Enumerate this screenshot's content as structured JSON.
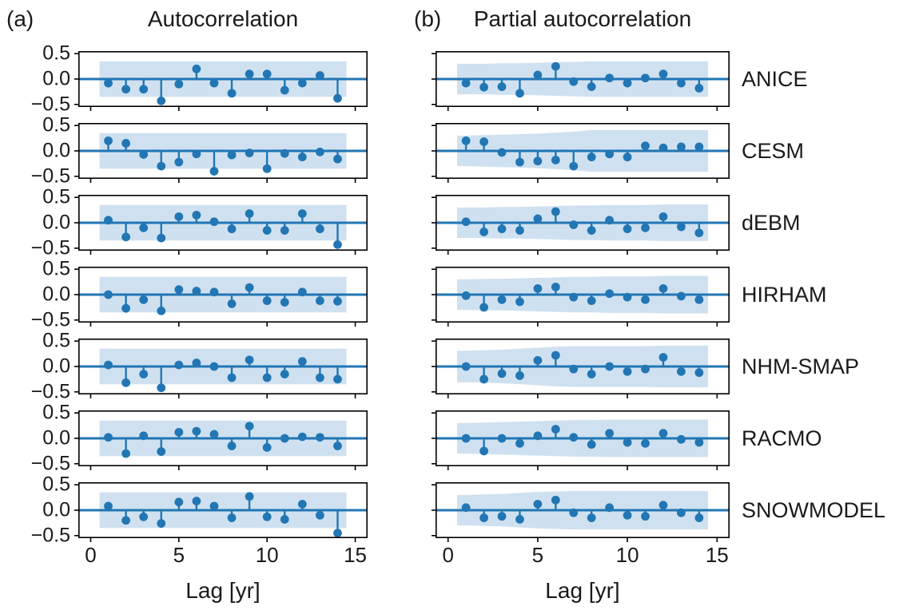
{
  "chart_data": {
    "type": "stem",
    "columns": [
      {
        "tag": "(a)",
        "title": "Autocorrelation",
        "key": "acf"
      },
      {
        "tag": "(b)",
        "title": "Partial autocorrelation",
        "key": "pacf"
      }
    ],
    "xlabel": "Lag [yr]",
    "x_ticks": [
      0,
      5,
      10,
      15
    ],
    "x_tick_labels": [
      "0",
      "5",
      "10",
      "15"
    ],
    "y_ticks": [
      0.5,
      0.0,
      -0.5
    ],
    "y_tick_labels": [
      "0.5",
      "0.0",
      "−0.5"
    ],
    "xlim": [
      -0.7,
      15.7
    ],
    "ylim": [
      -0.55,
      0.55
    ],
    "lags": [
      1,
      2,
      3,
      4,
      5,
      6,
      7,
      8,
      9,
      10,
      11,
      12,
      13,
      14
    ],
    "band_x_range": [
      0.5,
      14.5
    ],
    "acf_band_halfwidth": 0.35,
    "grid": false,
    "legend": "none",
    "colors": {
      "stem": "#2276b4",
      "band": "#cfe1f0",
      "axis": "#000000"
    },
    "models": [
      {
        "name": "ANICE",
        "acf": [
          -0.08,
          -0.2,
          -0.2,
          -0.43,
          -0.1,
          0.2,
          -0.08,
          -0.28,
          0.1,
          0.1,
          -0.22,
          -0.08,
          0.07,
          -0.38
        ],
        "pacf": [
          -0.08,
          -0.16,
          -0.15,
          -0.28,
          0.08,
          0.25,
          -0.05,
          -0.15,
          0.02,
          -0.08,
          0.02,
          0.1,
          -0.08,
          -0.18
        ],
        "pacf_band_halfwidths": [
          0.3,
          0.3,
          0.31,
          0.31,
          0.32,
          0.33,
          0.34,
          0.35,
          0.35,
          0.35,
          0.35,
          0.35,
          0.35,
          0.35
        ]
      },
      {
        "name": "CESM",
        "acf": [
          0.2,
          0.15,
          -0.07,
          -0.3,
          -0.22,
          -0.06,
          -0.4,
          -0.08,
          -0.04,
          -0.35,
          -0.05,
          -0.12,
          -0.02,
          -0.16
        ],
        "pacf": [
          0.2,
          0.18,
          -0.03,
          -0.22,
          -0.2,
          -0.18,
          -0.3,
          -0.12,
          -0.06,
          -0.12,
          0.1,
          0.06,
          0.08,
          0.08
        ],
        "pacf_band_halfwidths": [
          0.3,
          0.31,
          0.32,
          0.33,
          0.34,
          0.36,
          0.38,
          0.41,
          0.41,
          0.41,
          0.41,
          0.41,
          0.41,
          0.41
        ]
      },
      {
        "name": "dEBM",
        "acf": [
          0.05,
          -0.28,
          -0.1,
          -0.3,
          0.12,
          0.15,
          0.02,
          -0.12,
          0.18,
          -0.15,
          -0.15,
          0.18,
          -0.12,
          -0.43
        ],
        "pacf": [
          0.02,
          -0.18,
          -0.12,
          -0.15,
          0.08,
          0.22,
          -0.04,
          -0.15,
          0.05,
          -0.12,
          -0.1,
          0.12,
          -0.08,
          -0.2
        ],
        "pacf_band_halfwidths": [
          0.3,
          0.3,
          0.31,
          0.31,
          0.32,
          0.33,
          0.34,
          0.34,
          0.35,
          0.35,
          0.35,
          0.36,
          0.36,
          0.36
        ]
      },
      {
        "name": "HIRHAM",
        "acf": [
          0.0,
          -0.27,
          -0.1,
          -0.32,
          0.1,
          0.07,
          0.05,
          -0.18,
          0.14,
          -0.12,
          -0.15,
          0.05,
          -0.12,
          -0.13
        ],
        "pacf": [
          -0.02,
          -0.25,
          -0.1,
          -0.14,
          0.12,
          0.15,
          -0.05,
          -0.12,
          0.02,
          -0.05,
          -0.1,
          0.12,
          -0.03,
          -0.1
        ],
        "pacf_band_halfwidths": [
          0.3,
          0.31,
          0.31,
          0.32,
          0.33,
          0.34,
          0.35,
          0.35,
          0.36,
          0.36,
          0.36,
          0.37,
          0.37,
          0.37
        ]
      },
      {
        "name": "NHM-SMAP",
        "acf": [
          0.03,
          -0.32,
          -0.15,
          -0.42,
          0.03,
          0.07,
          0.0,
          -0.22,
          0.13,
          -0.22,
          -0.15,
          0.1,
          -0.22,
          -0.25
        ],
        "pacf": [
          0.0,
          -0.25,
          -0.14,
          -0.18,
          0.12,
          0.22,
          -0.05,
          -0.15,
          0.0,
          -0.1,
          -0.05,
          0.18,
          -0.1,
          -0.12
        ],
        "pacf_band_halfwidths": [
          0.31,
          0.32,
          0.33,
          0.35,
          0.37,
          0.39,
          0.4,
          0.4,
          0.4,
          0.4,
          0.4,
          0.41,
          0.41,
          0.41
        ]
      },
      {
        "name": "RACMO",
        "acf": [
          0.02,
          -0.3,
          0.05,
          -0.26,
          0.12,
          0.14,
          0.08,
          -0.15,
          0.24,
          -0.18,
          0.0,
          0.03,
          0.02,
          -0.15
        ],
        "pacf": [
          0.0,
          -0.25,
          0.0,
          -0.1,
          0.05,
          0.18,
          0.02,
          -0.12,
          0.1,
          -0.08,
          -0.1,
          0.1,
          -0.02,
          -0.08
        ],
        "pacf_band_halfwidths": [
          0.3,
          0.31,
          0.32,
          0.33,
          0.34,
          0.35,
          0.36,
          0.36,
          0.37,
          0.37,
          0.37,
          0.37,
          0.37,
          0.37
        ]
      },
      {
        "name": "SNOWMODEL",
        "acf": [
          0.08,
          -0.2,
          -0.13,
          -0.26,
          0.16,
          0.18,
          0.08,
          -0.15,
          0.27,
          -0.13,
          -0.18,
          0.12,
          -0.1,
          -0.45
        ],
        "pacf": [
          0.05,
          -0.15,
          -0.12,
          -0.18,
          0.12,
          0.2,
          -0.05,
          -0.15,
          0.05,
          -0.1,
          -0.12,
          0.1,
          -0.05,
          -0.15
        ],
        "pacf_band_halfwidths": [
          0.3,
          0.31,
          0.32,
          0.34,
          0.36,
          0.37,
          0.38,
          0.38,
          0.38,
          0.38,
          0.38,
          0.38,
          0.38,
          0.38
        ]
      }
    ]
  }
}
